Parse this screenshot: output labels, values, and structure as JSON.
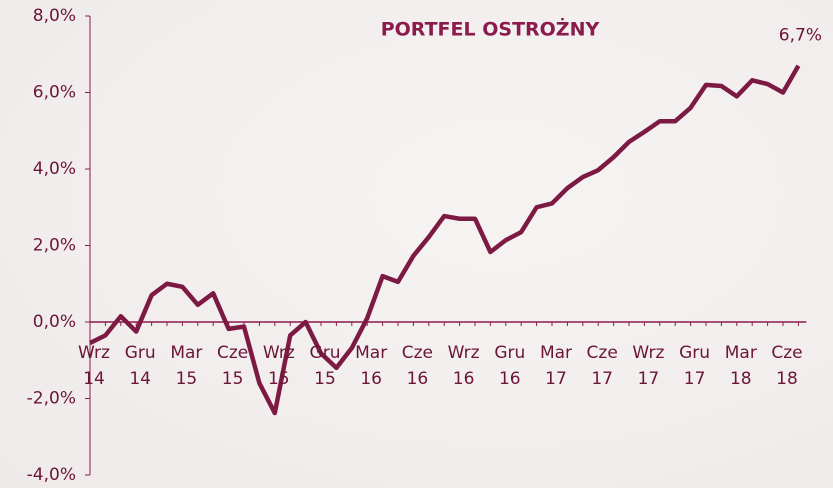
{
  "chart_data": {
    "type": "line",
    "title": "PORTFEL OSTROŻNY",
    "categories": [
      "Wrz 14",
      null,
      null,
      "Gru 14",
      null,
      null,
      "Mar 15",
      null,
      null,
      "Cze 15",
      null,
      null,
      "Wrz 15",
      null,
      null,
      "Gru 15",
      null,
      null,
      "Mar 16",
      null,
      null,
      "Cze 16",
      null,
      null,
      "Wrz 16",
      null,
      null,
      "Gru 16",
      null,
      null,
      "Mar 17",
      null,
      null,
      "Cze 17",
      null,
      null,
      "Wrz 17",
      null,
      null,
      "Gru 17",
      null,
      null,
      "Mar 18",
      null,
      null,
      "Cze 18",
      null
    ],
    "series": [
      {
        "name": "PORTFEL OSTROŻNY",
        "color": "#7d1a43",
        "values": [
          -0.55,
          -0.35,
          0.15,
          -0.25,
          0.7,
          1.0,
          0.92,
          0.45,
          0.75,
          -0.18,
          -0.12,
          -1.6,
          -2.38,
          -0.35,
          0.0,
          -0.82,
          -1.2,
          -0.68,
          0.1,
          1.2,
          1.05,
          1.73,
          2.22,
          2.77,
          2.7,
          2.7,
          1.83,
          2.14,
          2.35,
          3.0,
          3.1,
          3.5,
          3.79,
          3.97,
          4.31,
          4.71,
          4.97,
          5.25,
          5.25,
          5.6,
          6.2,
          6.17,
          5.9,
          6.32,
          6.22,
          6.0,
          6.7
        ],
        "value_labels": [
          null,
          null,
          null,
          null,
          null,
          null,
          null,
          null,
          null,
          null,
          null,
          null,
          null,
          null,
          null,
          null,
          null,
          null,
          null,
          null,
          null,
          null,
          null,
          null,
          null,
          null,
          null,
          null,
          null,
          null,
          null,
          null,
          null,
          null,
          null,
          null,
          null,
          null,
          null,
          null,
          null,
          null,
          null,
          null,
          null,
          null,
          "6,7%"
        ]
      }
    ],
    "ylim": [
      -4,
      8
    ],
    "yticks": [
      {
        "value": -4,
        "label": "-4,0%"
      },
      {
        "value": -2,
        "label": "-2,0%"
      },
      {
        "value": 0,
        "label": "0,0%"
      },
      {
        "value": 2,
        "label": "2,0%"
      },
      {
        "value": 4,
        "label": "4,0%"
      },
      {
        "value": 6,
        "label": "6,0%"
      },
      {
        "value": 8,
        "label": "8,0%"
      }
    ]
  }
}
